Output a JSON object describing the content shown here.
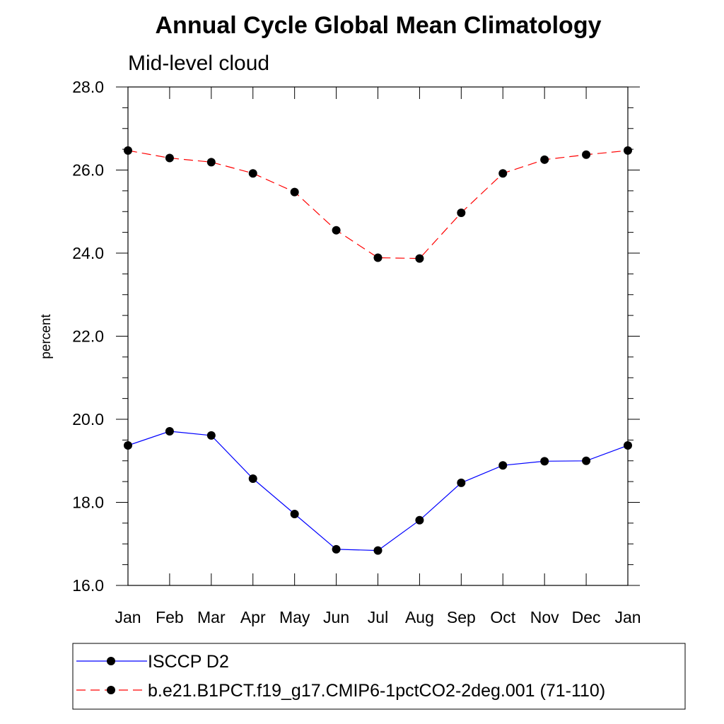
{
  "chart_data": {
    "type": "line",
    "title": "Annual Cycle Global Mean Climatology",
    "subtitle": "Mid-level cloud",
    "xlabel": "",
    "ylabel": "percent",
    "ylim": [
      16.0,
      28.0
    ],
    "yticks": [
      "16.0",
      "18.0",
      "20.0",
      "22.0",
      "24.0",
      "26.0",
      "28.0"
    ],
    "categories": [
      "Jan",
      "Feb",
      "Mar",
      "Apr",
      "May",
      "Jun",
      "Jul",
      "Aug",
      "Sep",
      "Oct",
      "Nov",
      "Dec",
      "Jan"
    ],
    "grid": false,
    "legend_position": "bottom",
    "series": [
      {
        "name": "ISCCP D2",
        "color": "#0000ff",
        "dash": "solid",
        "marker": "filled-circle",
        "values": [
          19.37,
          19.71,
          19.61,
          18.57,
          17.72,
          16.87,
          16.84,
          17.57,
          18.47,
          18.89,
          18.99,
          19.0,
          19.37
        ]
      },
      {
        "name": "b.e21.B1PCT.f19_g17.CMIP6-1pctCO2-2deg.001 (71-110)",
        "color": "#ff0000",
        "dash": "dashed",
        "marker": "filled-circle",
        "values": [
          26.47,
          26.29,
          26.19,
          25.92,
          25.47,
          24.55,
          23.89,
          23.87,
          24.97,
          25.92,
          26.25,
          26.37,
          26.47
        ]
      }
    ]
  }
}
